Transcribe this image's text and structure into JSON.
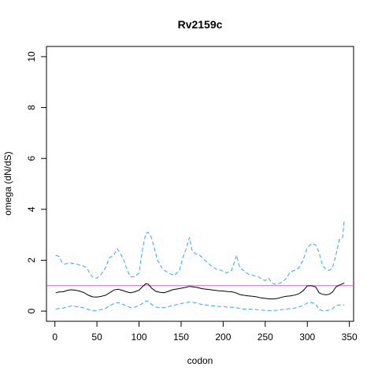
{
  "chart_data": {
    "type": "line",
    "title": "Rv2159c",
    "xlabel": "codon",
    "ylabel": "omega (dN/dS)",
    "xlim": [
      -10,
      355
    ],
    "ylim": [
      -0.4,
      10.4
    ],
    "xticks": [
      0,
      50,
      100,
      150,
      200,
      250,
      300,
      350
    ],
    "yticks": [
      0,
      2,
      4,
      6,
      8,
      10
    ],
    "grid": false,
    "reference_line": {
      "y": 1,
      "color": "#cc66cc"
    },
    "series": [
      {
        "role": "upper",
        "color": "#33aadd",
        "dash": "dashed",
        "x": [
          1,
          5,
          8,
          12,
          18,
          25,
          32,
          38,
          42,
          46,
          50,
          55,
          60,
          65,
          70,
          74,
          78,
          82,
          86,
          90,
          95,
          100,
          104,
          108,
          111,
          114,
          118,
          122,
          128,
          135,
          142,
          148,
          152,
          156,
          160,
          163,
          167,
          172,
          178,
          185,
          192,
          198,
          204,
          210,
          214,
          216,
          218,
          220,
          224,
          230,
          236,
          242,
          246,
          250,
          254,
          258,
          262,
          268,
          274,
          280,
          285,
          290,
          295,
          300,
          305,
          310,
          314,
          318,
          322,
          326,
          330,
          334,
          338,
          342,
          344
        ],
        "y": [
          2.2,
          2.15,
          1.95,
          1.85,
          1.9,
          1.85,
          1.8,
          1.7,
          1.45,
          1.3,
          1.3,
          1.45,
          1.7,
          2.1,
          2.2,
          2.45,
          2.25,
          2.0,
          1.6,
          1.35,
          1.35,
          1.5,
          2.4,
          3.05,
          3.1,
          2.95,
          2.5,
          2.0,
          1.65,
          1.5,
          1.4,
          1.6,
          2.1,
          2.45,
          2.9,
          2.4,
          2.25,
          2.2,
          2.0,
          1.8,
          1.65,
          1.6,
          1.5,
          1.6,
          2.0,
          2.2,
          1.9,
          1.7,
          1.6,
          1.45,
          1.4,
          1.35,
          1.25,
          1.2,
          1.3,
          1.1,
          1.05,
          1.1,
          1.25,
          1.55,
          1.6,
          1.7,
          2.0,
          2.5,
          2.65,
          2.6,
          2.3,
          1.8,
          1.65,
          1.6,
          1.7,
          2.2,
          2.8,
          2.9,
          3.6
        ]
      },
      {
        "role": "estimate",
        "color": "#000000",
        "dash": "solid",
        "x": [
          1,
          5,
          10,
          15,
          20,
          25,
          30,
          35,
          40,
          45,
          50,
          55,
          60,
          65,
          70,
          75,
          80,
          85,
          90,
          95,
          100,
          104,
          108,
          111,
          115,
          120,
          125,
          130,
          135,
          140,
          145,
          150,
          155,
          160,
          165,
          170,
          175,
          180,
          185,
          190,
          195,
          200,
          205,
          210,
          215,
          220,
          225,
          230,
          235,
          240,
          245,
          250,
          255,
          260,
          265,
          270,
          275,
          280,
          285,
          290,
          295,
          300,
          305,
          310,
          314,
          318,
          322,
          326,
          330,
          334,
          338,
          342,
          344
        ],
        "y": [
          0.72,
          0.75,
          0.76,
          0.82,
          0.84,
          0.82,
          0.78,
          0.72,
          0.62,
          0.56,
          0.55,
          0.58,
          0.62,
          0.72,
          0.83,
          0.86,
          0.82,
          0.76,
          0.72,
          0.76,
          0.82,
          0.96,
          1.08,
          1.06,
          0.9,
          0.78,
          0.74,
          0.72,
          0.78,
          0.84,
          0.87,
          0.9,
          0.93,
          0.97,
          0.95,
          0.92,
          0.88,
          0.86,
          0.84,
          0.82,
          0.8,
          0.79,
          0.77,
          0.76,
          0.72,
          0.65,
          0.62,
          0.6,
          0.58,
          0.56,
          0.52,
          0.5,
          0.48,
          0.48,
          0.5,
          0.55,
          0.58,
          0.6,
          0.63,
          0.68,
          0.8,
          0.99,
          1.0,
          0.95,
          0.72,
          0.66,
          0.64,
          0.66,
          0.75,
          0.95,
          1.02,
          1.08,
          1.1
        ]
      },
      {
        "role": "lower",
        "color": "#33aadd",
        "dash": "dashed",
        "x": [
          1,
          5,
          10,
          15,
          20,
          25,
          30,
          35,
          40,
          45,
          50,
          55,
          60,
          65,
          70,
          75,
          80,
          85,
          90,
          95,
          100,
          104,
          108,
          111,
          115,
          120,
          125,
          130,
          135,
          140,
          145,
          150,
          155,
          160,
          165,
          170,
          175,
          180,
          185,
          190,
          195,
          200,
          205,
          210,
          215,
          220,
          225,
          230,
          235,
          240,
          245,
          250,
          255,
          260,
          265,
          270,
          275,
          280,
          285,
          290,
          295,
          300,
          305,
          310,
          314,
          318,
          322,
          326,
          330,
          334,
          338,
          342,
          344
        ],
        "y": [
          0.08,
          0.1,
          0.12,
          0.18,
          0.2,
          0.18,
          0.16,
          0.12,
          0.06,
          0.02,
          0.02,
          0.06,
          0.1,
          0.2,
          0.3,
          0.34,
          0.28,
          0.2,
          0.14,
          0.16,
          0.22,
          0.3,
          0.4,
          0.38,
          0.26,
          0.16,
          0.14,
          0.14,
          0.18,
          0.22,
          0.26,
          0.3,
          0.32,
          0.36,
          0.34,
          0.3,
          0.26,
          0.24,
          0.22,
          0.2,
          0.18,
          0.18,
          0.16,
          0.15,
          0.14,
          0.1,
          0.08,
          0.08,
          0.07,
          0.06,
          0.04,
          0.03,
          0.02,
          0.02,
          0.04,
          0.06,
          0.08,
          0.1,
          0.12,
          0.16,
          0.22,
          0.32,
          0.34,
          0.28,
          0.06,
          0.02,
          0.02,
          0.04,
          0.1,
          0.22,
          0.24,
          0.24,
          0.24
        ]
      }
    ]
  }
}
